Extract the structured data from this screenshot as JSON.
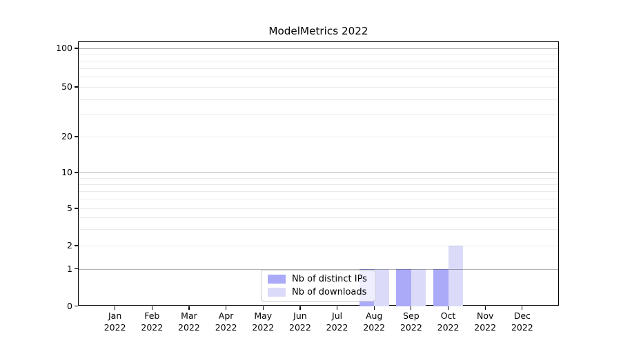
{
  "title": "ModelMetrics 2022",
  "chart_data": {
    "type": "bar",
    "title": "ModelMetrics 2022",
    "categories": [
      "Jan 2022",
      "Feb 2022",
      "Mar 2022",
      "Apr 2022",
      "May 2022",
      "Jun 2022",
      "Jul 2022",
      "Aug 2022",
      "Sep 2022",
      "Oct 2022",
      "Nov 2022",
      "Dec 2022"
    ],
    "series": [
      {
        "name": "Nb of distinct IPs",
        "color": "#abaaf8",
        "values": [
          0,
          0,
          0,
          0,
          0,
          0,
          0,
          1,
          1,
          1,
          0,
          0
        ]
      },
      {
        "name": "Nb of downloads",
        "color": "#dbdbf9",
        "values": [
          0,
          0,
          0,
          0,
          0,
          0,
          0,
          1,
          1,
          2,
          0,
          0
        ]
      }
    ],
    "yticks": [
      0,
      1,
      2,
      5,
      10,
      20,
      50,
      100
    ],
    "xlabel": "",
    "ylabel": "",
    "ylim": [
      0,
      113
    ],
    "y_scale": "asinh",
    "grid": {
      "horizontal": true,
      "vertical": false,
      "minor": true
    },
    "legend_position": "lower center inside plot"
  },
  "colors": {
    "major_grid": "#b3b3b3",
    "minor_grid": "#ebebeb",
    "axis": "#000000",
    "legend_border": "#cccccc",
    "background": "#ffffff"
  }
}
